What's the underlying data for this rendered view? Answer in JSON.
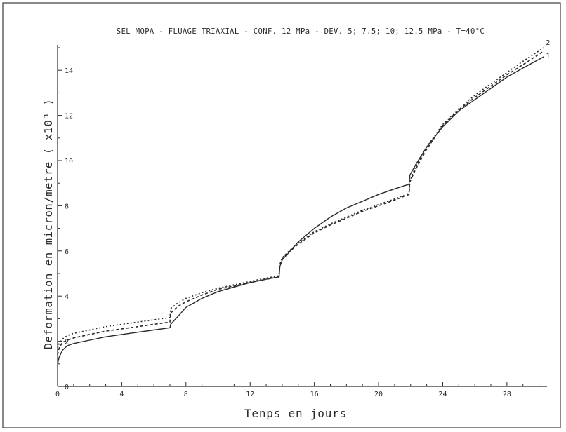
{
  "chart_data": {
    "type": "line",
    "title": "SEL MOPA - FLUAGE TRIAXIAL - CONF. 12 MPa - DEV. 5; 7.5; 10; 12.5 MPa - T=40°C",
    "xlabel": "Tenps en jours",
    "ylabel": "Deformation en micron/metre ( x10³ )",
    "xlim": [
      0,
      30.5
    ],
    "ylim": [
      0,
      15
    ],
    "xticks": [
      0,
      4,
      8,
      12,
      16,
      20,
      24,
      28
    ],
    "yticks": [
      0,
      2,
      4,
      6,
      8,
      10,
      12,
      14
    ],
    "grid": false,
    "series": [
      {
        "name": "1",
        "style": "solid",
        "color": "#2a2a2a",
        "x": [
          0,
          0.1,
          0.3,
          0.6,
          1,
          2,
          3,
          4,
          5,
          6,
          7,
          7.05,
          7.5,
          8,
          9,
          10,
          11,
          12,
          13,
          13.8,
          13.85,
          14,
          14.5,
          15,
          16,
          17,
          18,
          19,
          20,
          21,
          21.9,
          21.95,
          22.3,
          23,
          24,
          25,
          26,
          27,
          28,
          29,
          30.3
        ],
        "y": [
          1.0,
          1.3,
          1.6,
          1.8,
          1.9,
          2.05,
          2.2,
          2.3,
          2.4,
          2.5,
          2.6,
          2.75,
          3.1,
          3.5,
          3.9,
          4.2,
          4.4,
          4.6,
          4.75,
          4.85,
          5.3,
          5.6,
          6.0,
          6.4,
          7.0,
          7.5,
          7.9,
          8.2,
          8.5,
          8.75,
          8.95,
          9.35,
          9.8,
          10.6,
          11.5,
          12.2,
          12.7,
          13.2,
          13.7,
          14.1,
          14.6
        ]
      },
      {
        "name": "2",
        "style": "dotted",
        "color": "#2a2a2a",
        "x": [
          0,
          0.1,
          0.3,
          0.6,
          1,
          2,
          3,
          4,
          5,
          6,
          7,
          7.05,
          7.5,
          8,
          9,
          10,
          11,
          12,
          13,
          13.8,
          13.85,
          14,
          14.5,
          15,
          16,
          17,
          18,
          19,
          20,
          21,
          21.9,
          21.95,
          22.3,
          23,
          24,
          25,
          26,
          27,
          28,
          29,
          30.3
        ],
        "y": [
          1.7,
          1.9,
          2.1,
          2.25,
          2.35,
          2.5,
          2.65,
          2.75,
          2.85,
          2.95,
          3.05,
          3.45,
          3.7,
          3.9,
          4.15,
          4.35,
          4.5,
          4.65,
          4.8,
          4.9,
          5.4,
          5.7,
          6.05,
          6.35,
          6.85,
          7.2,
          7.5,
          7.8,
          8.05,
          8.3,
          8.55,
          9.1,
          9.7,
          10.6,
          11.6,
          12.3,
          12.9,
          13.4,
          13.9,
          14.4,
          15.0
        ]
      },
      {
        "name": "",
        "style": "dashed",
        "color": "#2a2a2a",
        "x": [
          0,
          0.1,
          0.3,
          0.6,
          1,
          2,
          3,
          4,
          5,
          6,
          7,
          7.05,
          7.5,
          8,
          9,
          10,
          11,
          12,
          13,
          13.8,
          13.85,
          14,
          14.5,
          15,
          16,
          17,
          18,
          19,
          20,
          21,
          21.9,
          21.95,
          22.3,
          23,
          24,
          25,
          26,
          27,
          28,
          29,
          30.3
        ],
        "y": [
          1.4,
          1.7,
          1.95,
          2.05,
          2.15,
          2.3,
          2.45,
          2.55,
          2.65,
          2.75,
          2.85,
          3.25,
          3.55,
          3.75,
          4.05,
          4.3,
          4.45,
          4.6,
          4.75,
          4.85,
          5.35,
          5.65,
          6.0,
          6.3,
          6.8,
          7.15,
          7.45,
          7.75,
          8.0,
          8.25,
          8.5,
          9.05,
          9.6,
          10.5,
          11.55,
          12.25,
          12.8,
          13.3,
          13.8,
          14.25,
          14.85
        ]
      }
    ]
  }
}
